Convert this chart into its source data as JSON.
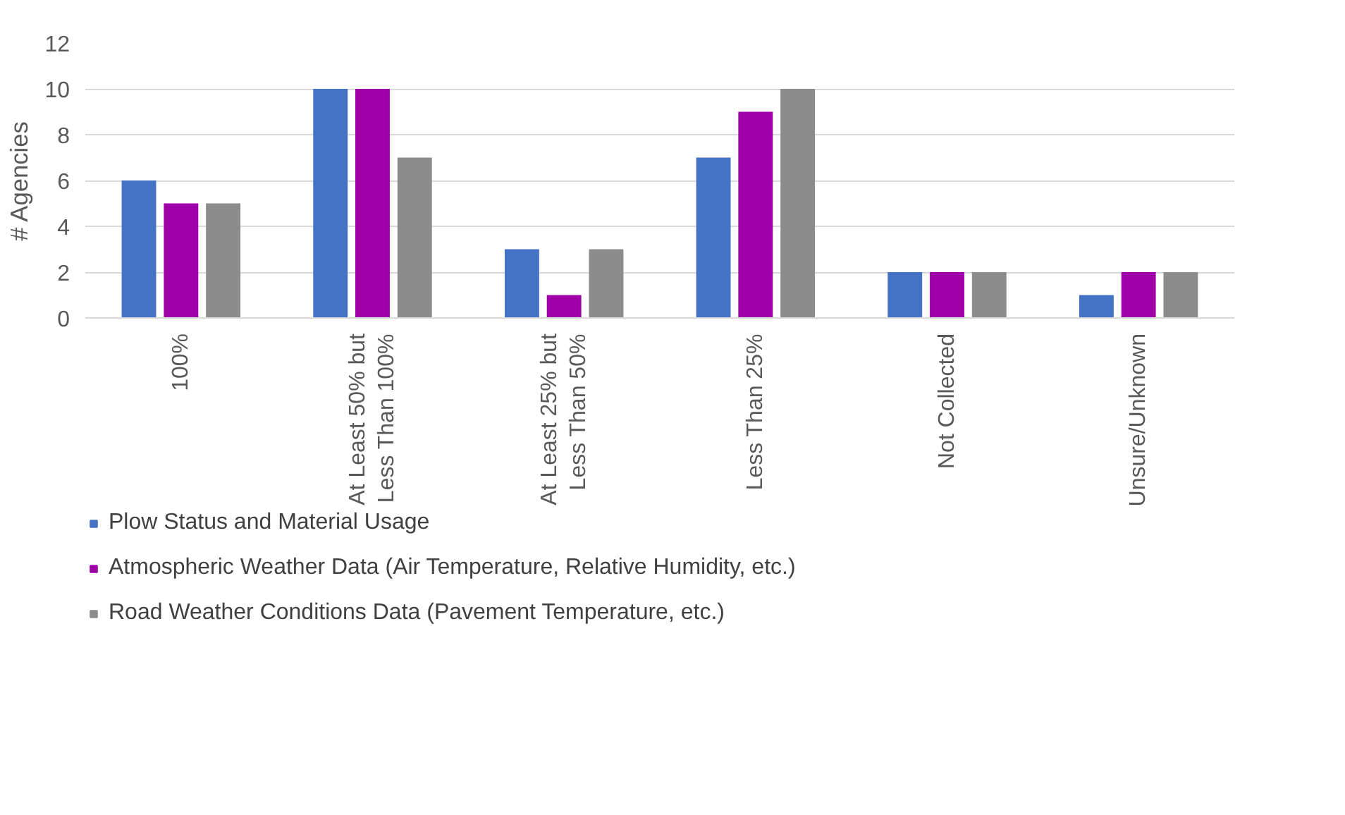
{
  "chart_data": {
    "type": "bar",
    "ylabel": "# Agencies",
    "categories": [
      "100%",
      "At Least 50% but\nLess Than 100%",
      "At Least 25% but\nLess Than 50%",
      "Less Than 25%",
      "Not Collected",
      "Unsure/Unknown"
    ],
    "series": [
      {
        "name": "Plow Status and Material Usage",
        "color": "#4472c4",
        "values": [
          6,
          10,
          3,
          7,
          2,
          1
        ]
      },
      {
        "name": "Atmospheric Weather Data (Air Temperature, Relative Humidity, etc.)",
        "color": "#a000a8",
        "values": [
          5,
          10,
          1,
          9,
          2,
          2
        ]
      },
      {
        "name": "Road Weather Conditions Data (Pavement Temperature, etc.)",
        "color": "#8c8c8c",
        "values": [
          5,
          7,
          3,
          10,
          2,
          2
        ]
      }
    ],
    "ylim": [
      0,
      12
    ],
    "yticks": [
      0,
      2,
      4,
      6,
      8,
      10,
      12
    ],
    "grid": "y",
    "legend": "bottom"
  }
}
